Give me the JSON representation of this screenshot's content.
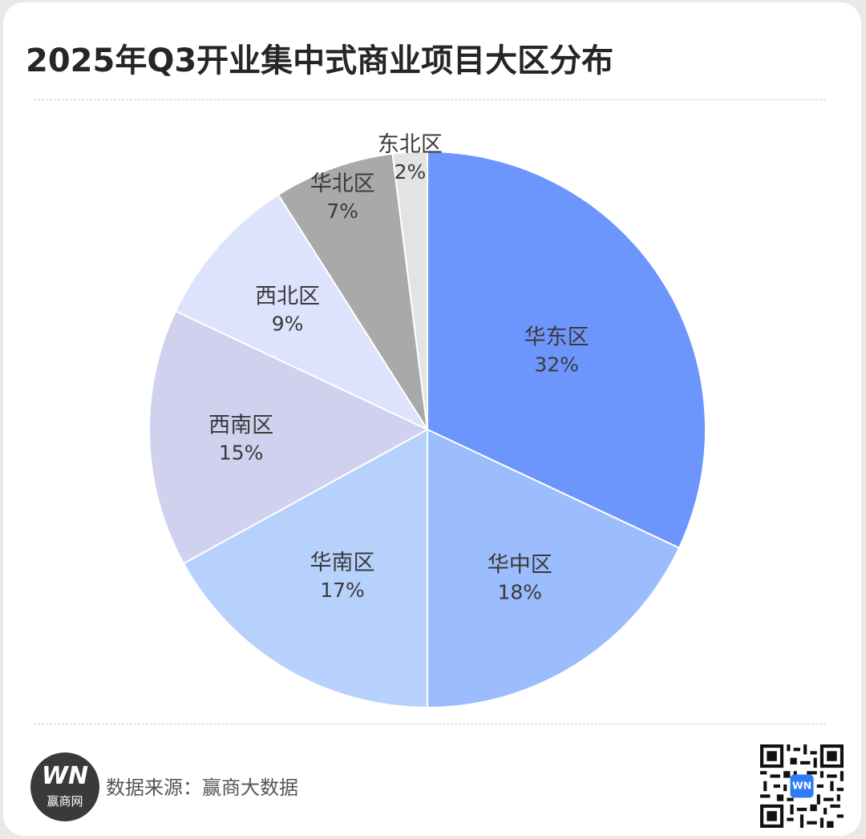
{
  "title": "2025年Q3开业集中式商业项目大区分布",
  "chart_data": {
    "type": "pie",
    "title": "2025年Q3开业集中式商业项目大区分布",
    "slices": [
      {
        "label": "华东区",
        "value": 32,
        "value_label": "32%",
        "color": "#6d96fc"
      },
      {
        "label": "华中区",
        "value": 18,
        "value_label": "18%",
        "color": "#9bbcfd"
      },
      {
        "label": "华南区",
        "value": 17,
        "value_label": "17%",
        "color": "#b7d1fd"
      },
      {
        "label": "西南区",
        "value": 15,
        "value_label": "15%",
        "color": "#d0d0ef"
      },
      {
        "label": "西北区",
        "value": 9,
        "value_label": "9%",
        "color": "#dde3fc"
      },
      {
        "label": "华北区",
        "value": 7,
        "value_label": "7%",
        "color": "#a9a9a9"
      },
      {
        "label": "东北区",
        "value": 2,
        "value_label": "2%",
        "color": "#e3e3e3"
      }
    ],
    "start": "12 o'clock",
    "direction": "clockwise"
  },
  "footer": {
    "logo_mark": "WN",
    "logo_text": "赢商网",
    "source": "数据来源：赢商大数据"
  }
}
